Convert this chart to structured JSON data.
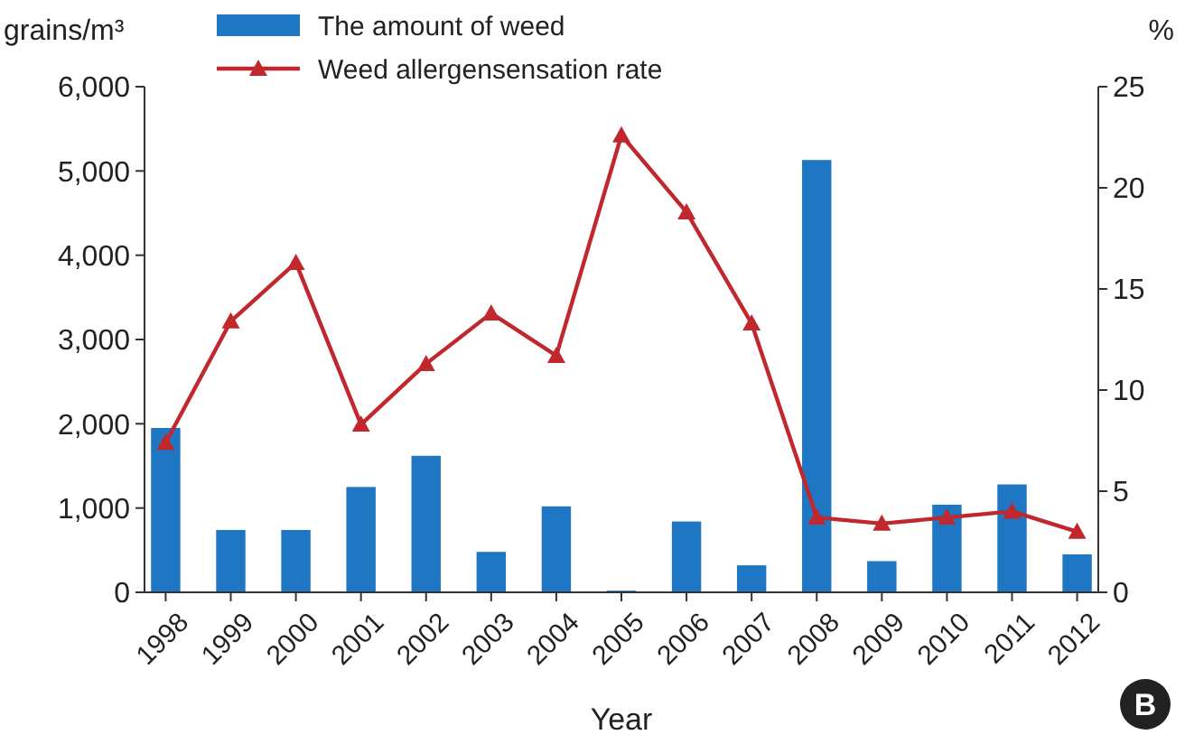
{
  "chart_data": {
    "type": "bar",
    "categories": [
      "1998",
      "1999",
      "2000",
      "2001",
      "2002",
      "2003",
      "2004",
      "2005",
      "2006",
      "2007",
      "2008",
      "2009",
      "2010",
      "2011",
      "2012"
    ],
    "series": [
      {
        "name": "The amount of weed",
        "color": "#1f77c4",
        "values": [
          1950,
          740,
          740,
          1250,
          1620,
          480,
          1020,
          20,
          840,
          320,
          5130,
          370,
          1040,
          1280,
          450
        ]
      },
      {
        "name": "Weed allergensensation rate",
        "type": "line",
        "axis": "y2",
        "color": "#c0282d",
        "marker": "triangle",
        "values": [
          7.4,
          13.4,
          16.3,
          8.3,
          11.3,
          13.8,
          11.7,
          22.6,
          18.8,
          13.3,
          3.7,
          3.4,
          3.7,
          4.0,
          3.0
        ]
      }
    ],
    "ylabel": "grains/m³",
    "y2label": "%",
    "xlabel": "Year",
    "ylim": [
      0,
      6000
    ],
    "yticks": [
      {
        "value": 0,
        "label": "0"
      },
      {
        "value": 1000,
        "label": "1,000"
      },
      {
        "value": 2000,
        "label": "2,000"
      },
      {
        "value": 3000,
        "label": "3,000"
      },
      {
        "value": 4000,
        "label": "4,000"
      },
      {
        "value": 5000,
        "label": "5,000"
      },
      {
        "value": 6000,
        "label": "6,000"
      }
    ],
    "y2lim": [
      0,
      25
    ],
    "y2ticks": [
      0,
      5,
      10,
      15,
      20,
      25
    ],
    "legend": "top left",
    "annotations": [
      "B"
    ]
  }
}
